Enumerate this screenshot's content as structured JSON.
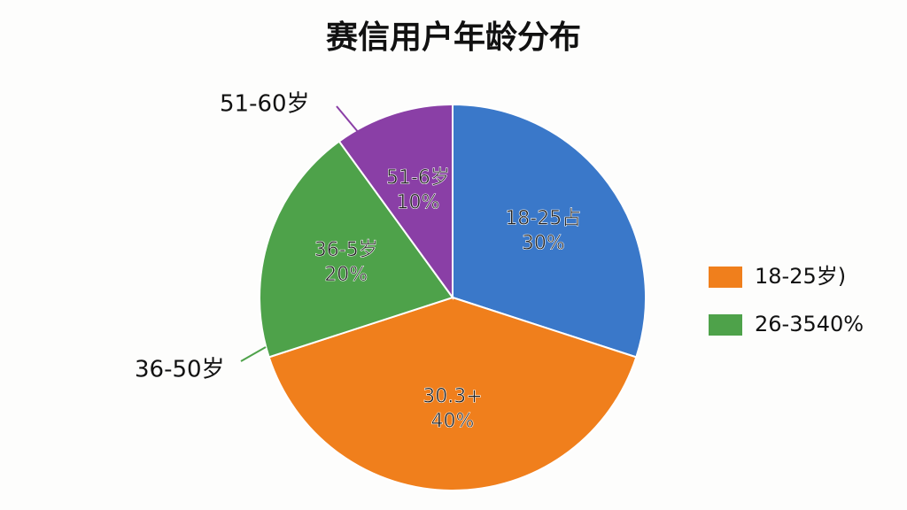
{
  "chart_data": {
    "type": "pie",
    "title": "赛信用户年龄分布",
    "categories": [
      "18-25占",
      "30.3+",
      "36-5岁",
      "51-6岁"
    ],
    "values": [
      30,
      40,
      20,
      10
    ],
    "value_labels": [
      "30%",
      "40%",
      "20%",
      "10%"
    ],
    "colors": [
      "#3a78c9",
      "#f07f1c",
      "#4ea24a",
      "#8a3fa6"
    ],
    "annotations": [
      {
        "text": "51-60岁",
        "color": "#8a3fa6"
      },
      {
        "text": "36-50岁",
        "color": "#4ea24a"
      }
    ],
    "legend": [
      {
        "label": "18-25岁)",
        "color": "#f07f1c"
      },
      {
        "label": "26-3540%",
        "color": "#4ea24a"
      }
    ]
  }
}
